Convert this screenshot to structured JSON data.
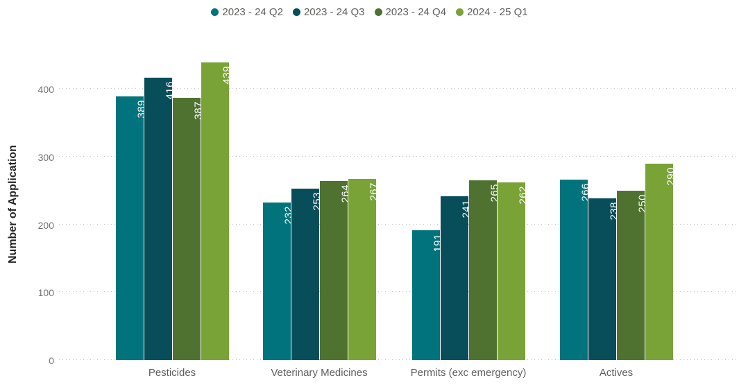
{
  "chart_data": {
    "type": "bar",
    "title": "",
    "categories": [
      "Pesticides",
      "Veterinary Medicines",
      "Permits (exc emergency)",
      "Actives"
    ],
    "series": [
      {
        "name": "2023 - 24 Q2",
        "color": "#00737C",
        "values": [
          389,
          232,
          191,
          266
        ]
      },
      {
        "name": "2023 - 24 Q3",
        "color": "#084D5A",
        "values": [
          416,
          253,
          241,
          238
        ]
      },
      {
        "name": "2023 - 24 Q4",
        "color": "#4F7230",
        "values": [
          387,
          264,
          265,
          250
        ]
      },
      {
        "name": "2024 - 25 Q1",
        "color": "#79A337",
        "values": [
          439,
          267,
          262,
          290
        ]
      }
    ],
    "xlabel": "",
    "ylabel": "Number of Application",
    "y_ticks": [
      0,
      100,
      200,
      300,
      400
    ],
    "ylim": [
      0,
      459
    ],
    "grid": "horizontal-dotted",
    "legend_position": "top-center",
    "data_labels": {
      "color": "#FFFFFF",
      "position": "inside-end",
      "rotation": "vertical-bottom-to-top"
    }
  },
  "colors": {
    "axis_text": "#605E5C",
    "tick_text": "#757170",
    "axis_title_text": "#252423",
    "gridline": "#C8C6C4",
    "background": "#FFFFFF",
    "bar_label": "#FFFFFF"
  }
}
